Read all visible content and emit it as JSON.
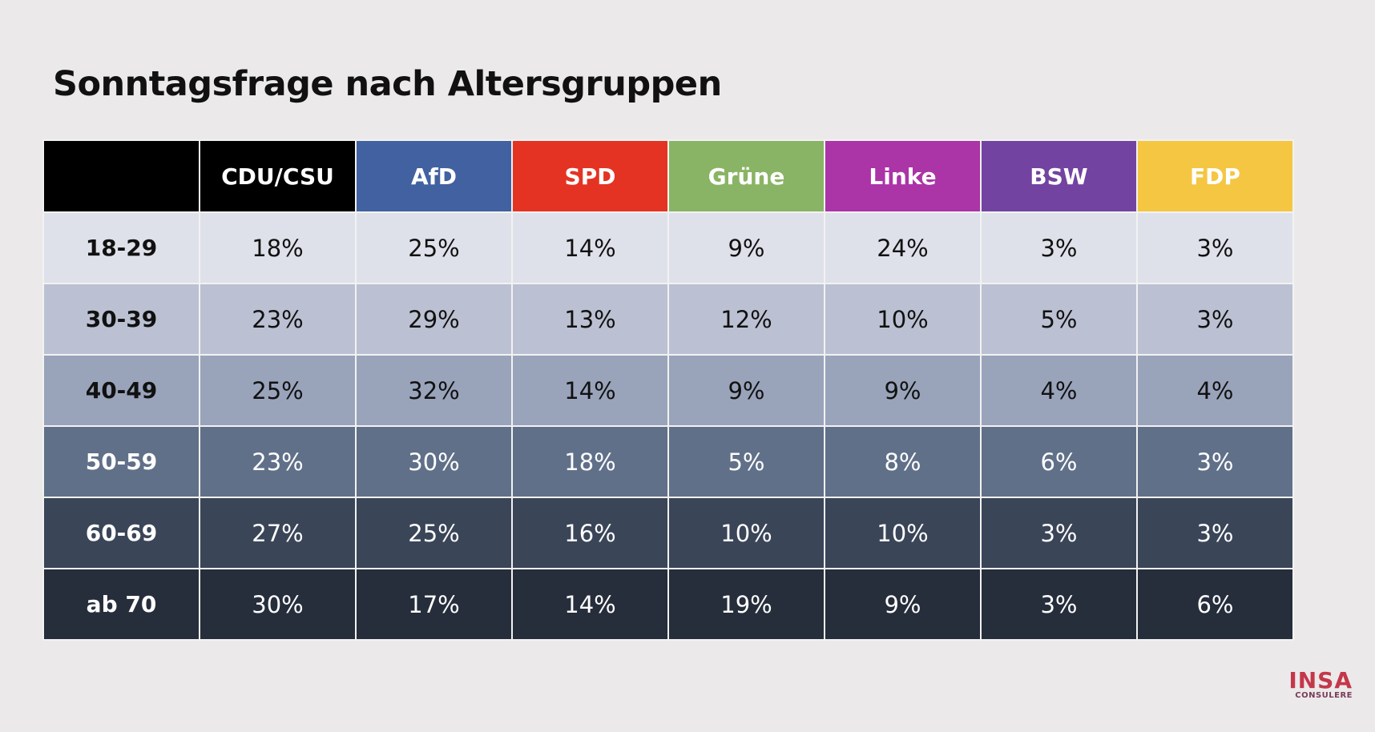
{
  "title": "Sonntagsfrage nach Altersgruppen",
  "logo": {
    "main": "INSA",
    "sub": "CONSULERE"
  },
  "chart_data": {
    "type": "table",
    "title": "Sonntagsfrage nach Altersgruppen",
    "columns": [
      "CDU/CSU",
      "AfD",
      "SPD",
      "Grüne",
      "Linke",
      "BSW",
      "FDP"
    ],
    "column_colors": [
      "#000000",
      "#4161a0",
      "#e43323",
      "#8ab465",
      "#ab34a6",
      "#7243a0",
      "#f4c642"
    ],
    "row_colors": [
      "#dfe1ea",
      "#bbc1d2",
      "#99a4bb",
      "#617089",
      "#3a4558",
      "#262d3b"
    ],
    "rows": [
      {
        "label": "18-29",
        "values": [
          "18%",
          "25%",
          "14%",
          "9%",
          "24%",
          "3%",
          "3%"
        ]
      },
      {
        "label": "30-39",
        "values": [
          "23%",
          "29%",
          "13%",
          "12%",
          "10%",
          "5%",
          "3%"
        ]
      },
      {
        "label": "40-49",
        "values": [
          "25%",
          "32%",
          "14%",
          "9%",
          "9%",
          "4%",
          "4%"
        ]
      },
      {
        "label": "50-59",
        "values": [
          "23%",
          "30%",
          "18%",
          "5%",
          "8%",
          "6%",
          "3%"
        ]
      },
      {
        "label": "60-69",
        "values": [
          "27%",
          "25%",
          "16%",
          "10%",
          "10%",
          "3%",
          "3%"
        ]
      },
      {
        "label": "ab 70",
        "values": [
          "30%",
          "17%",
          "14%",
          "19%",
          "9%",
          "3%",
          "6%"
        ]
      }
    ]
  }
}
